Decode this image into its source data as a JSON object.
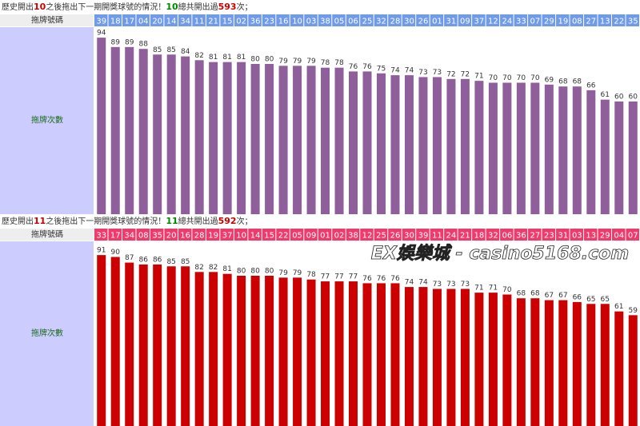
{
  "chart_data": [
    {
      "type": "bar",
      "title_parts": [
        {
          "text": "歷史開出"
        },
        {
          "text": "10",
          "color": "#cc0000"
        },
        {
          "text": "之後拖出下一期開獎球號的情況！"
        },
        {
          "text": "10",
          "color": "#008800"
        },
        {
          "text": "總共開出過"
        },
        {
          "text": "593",
          "color": "#cc0000"
        },
        {
          "text": "次；"
        }
      ],
      "row_label": "拖牌號碼",
      "value_label": "拖牌次數",
      "header_color": "#6f9be8",
      "color": "#8e5f9a",
      "categories": [
        "39",
        "18",
        "17",
        "04",
        "20",
        "14",
        "34",
        "11",
        "21",
        "15",
        "02",
        "36",
        "23",
        "16",
        "10",
        "03",
        "38",
        "05",
        "06",
        "25",
        "32",
        "28",
        "30",
        "26",
        "01",
        "31",
        "09",
        "37",
        "12",
        "24",
        "33",
        "07",
        "29",
        "19",
        "08",
        "27",
        "13",
        "22",
        "35"
      ],
      "values": [
        94,
        89,
        89,
        88,
        85,
        85,
        84,
        82,
        81,
        81,
        81,
        80,
        80,
        79,
        79,
        79,
        78,
        78,
        76,
        76,
        75,
        74,
        74,
        73,
        73,
        72,
        72,
        71,
        70,
        70,
        70,
        70,
        69,
        68,
        68,
        66,
        61,
        60,
        60
      ]
    },
    {
      "type": "bar",
      "title_parts": [
        {
          "text": "歷史開出"
        },
        {
          "text": "11",
          "color": "#cc0000"
        },
        {
          "text": "之後拖出下一期開獎球號的情況！"
        },
        {
          "text": "11",
          "color": "#008800"
        },
        {
          "text": "總共開出過"
        },
        {
          "text": "592",
          "color": "#cc0000"
        },
        {
          "text": "次；"
        }
      ],
      "row_label": "拖牌號碼",
      "value_label": "拖牌次數",
      "header_color": "#ee3b6c",
      "color": "#cc0000",
      "categories": [
        "33",
        "17",
        "34",
        "08",
        "35",
        "20",
        "16",
        "28",
        "19",
        "37",
        "10",
        "14",
        "15",
        "22",
        "05",
        "09",
        "01",
        "02",
        "38",
        "12",
        "25",
        "26",
        "30",
        "39",
        "11",
        "24",
        "21",
        "18",
        "32",
        "06",
        "36",
        "27",
        "23",
        "31",
        "03",
        "13",
        "29",
        "04",
        "07"
      ],
      "values": [
        91,
        90,
        87,
        86,
        86,
        85,
        85,
        82,
        82,
        81,
        80,
        80,
        80,
        79,
        79,
        78,
        77,
        77,
        77,
        76,
        76,
        76,
        74,
        74,
        73,
        73,
        73,
        71,
        71,
        70,
        68,
        68,
        67,
        67,
        66,
        65,
        65,
        61,
        59
      ]
    }
  ],
  "watermark": "EX娛樂城 - casino5168.com"
}
